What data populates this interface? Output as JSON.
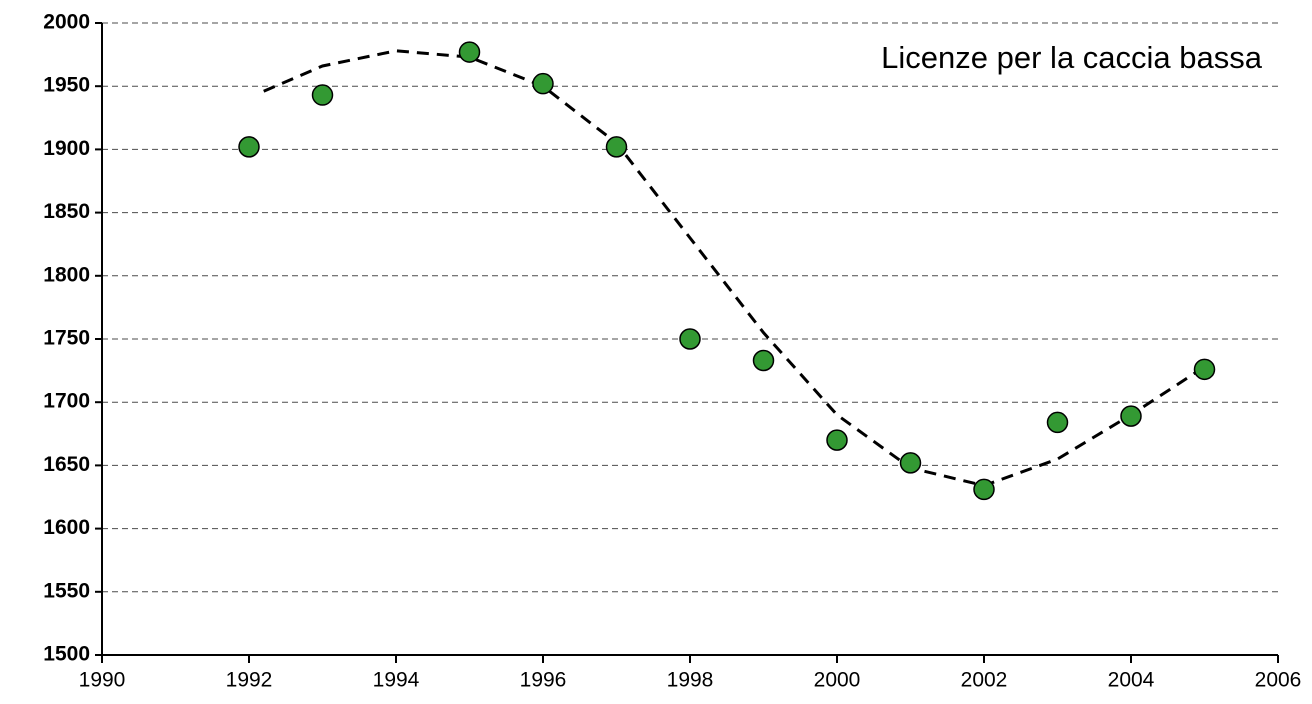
{
  "chart_data": {
    "type": "scatter",
    "title": "Licenze per la caccia bassa",
    "series": [
      {
        "color": "#339933",
        "x": [
          1992,
          1993,
          1995,
          1996,
          1997,
          1998,
          1999,
          2000,
          2001,
          2002,
          2003,
          2004,
          2005
        ],
        "values": [
          1902,
          1943,
          1977,
          1952,
          1902,
          1750,
          1733,
          1670,
          1652,
          1631,
          1684,
          1689,
          1726
        ]
      },
      {
        "style": "dashed-line",
        "color": "#000000",
        "x": [
          1992.2,
          1993,
          1994,
          1995,
          1996,
          1997,
          1998,
          1999,
          2000,
          2001,
          2002,
          2003,
          2004,
          2005
        ],
        "values": [
          1946,
          1966,
          1978,
          1973,
          1950,
          1905,
          1830,
          1755,
          1690,
          1648,
          1634,
          1655,
          1690,
          1728
        ]
      }
    ],
    "xlim": [
      1990,
      2006
    ],
    "xticks": [
      1990,
      1992,
      1994,
      1996,
      1998,
      2000,
      2002,
      2004,
      2006
    ],
    "ylim": [
      1500,
      2000
    ],
    "yticks": [
      1500,
      1550,
      1600,
      1650,
      1700,
      1750,
      1800,
      1850,
      1900,
      1950,
      2000
    ],
    "grid": true
  }
}
